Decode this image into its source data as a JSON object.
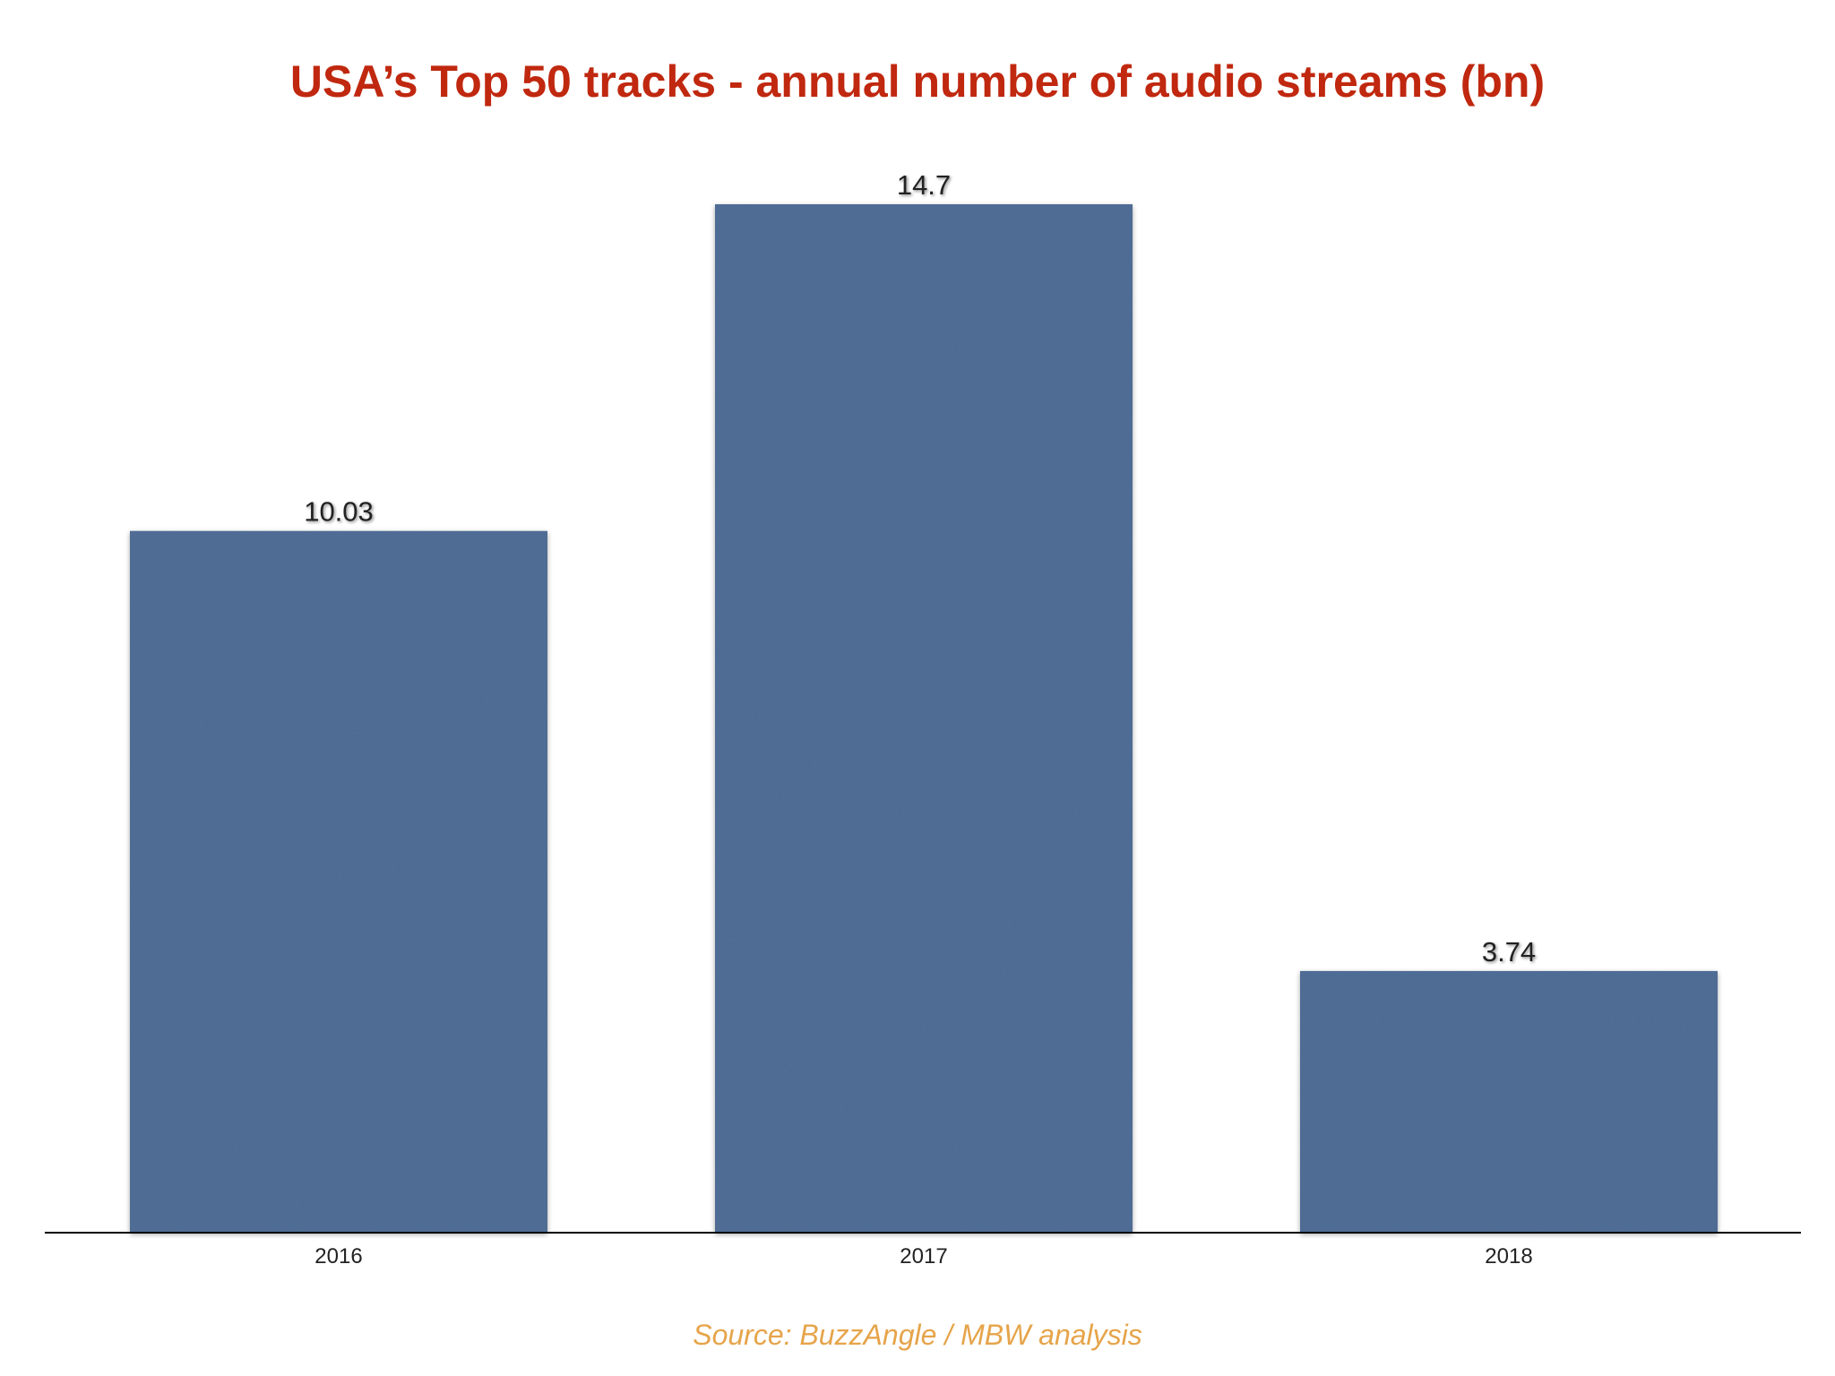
{
  "chart_data": {
    "type": "bar",
    "title": "USA’s Top 50 tracks - annual number of audio streams (bn)",
    "categories": [
      "2016",
      "2017",
      "2018"
    ],
    "values": [
      10.03,
      14.7,
      3.74
    ],
    "data_labels": [
      "10.03",
      "14.7",
      "3.74"
    ],
    "xlabel": "",
    "ylabel": "",
    "ylim": [
      0,
      14.7
    ],
    "grid": false,
    "legend": "none",
    "colors": {
      "bar": "#4f6c94",
      "bar_texture": "#5d7a9e",
      "title": "#c0280f",
      "source": "#e6a44a",
      "axis": "#000000"
    }
  },
  "source": "Source: BuzzAngle / MBW analysis"
}
